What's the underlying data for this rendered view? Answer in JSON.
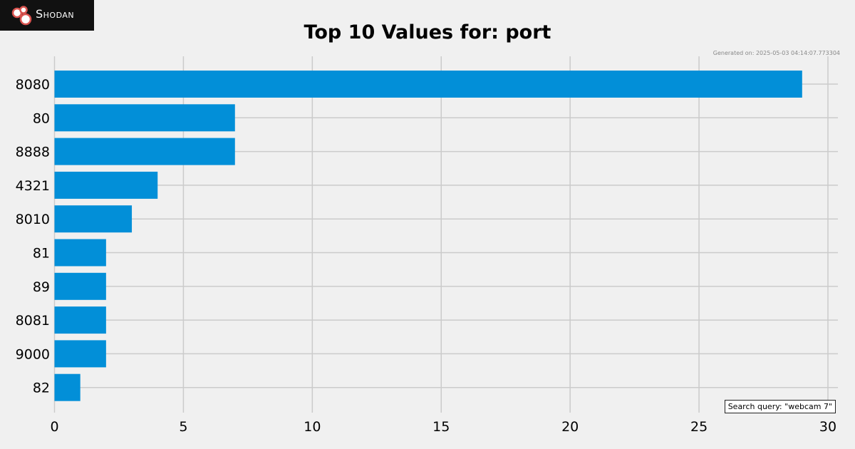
{
  "brand": {
    "name": "Shodan",
    "logo_icon": "shodan-logo-icon"
  },
  "header": {
    "generated_on": "Generated on: 2025-05-03 04:14:07.773304"
  },
  "footer": {
    "search_query": "Search query: \"webcam 7\""
  },
  "colors": {
    "bar": "#028fd8",
    "background": "#f0f0f0",
    "grid": "#cbcbcb",
    "logo_bg": "#111111"
  },
  "chart_data": {
    "type": "bar",
    "orientation": "horizontal",
    "title": "Top 10 Values for: port",
    "xlabel": "",
    "ylabel": "",
    "categories": [
      "8080",
      "80",
      "8888",
      "4321",
      "8010",
      "81",
      "89",
      "8081",
      "9000",
      "82"
    ],
    "values": [
      29,
      7,
      7,
      4,
      3,
      2,
      2,
      2,
      2,
      1
    ],
    "xlim": [
      0,
      30
    ],
    "xticks": [
      0,
      5,
      10,
      15,
      20,
      25,
      30
    ],
    "grid": true,
    "legend": "none"
  }
}
